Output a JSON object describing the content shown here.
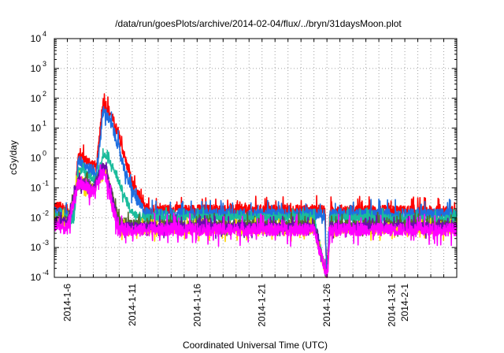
{
  "chart_data": {
    "type": "line",
    "title": "/data/run/goesPlots/archive/2014-02-04/flux/../bryn/31daysMoon.plot",
    "xlabel": "Coordinated Universal Time (UTC)",
    "ylabel": "cGy/day",
    "yscale": "log",
    "ylim": [
      0.0001,
      10000
    ],
    "xlim": [
      "2014-01-05",
      "2014-02-05"
    ],
    "grid": true,
    "y_ticks": [
      {
        "value": 0.0001,
        "base": "10",
        "exp": "-4"
      },
      {
        "value": 0.001,
        "base": "10",
        "exp": "-3"
      },
      {
        "value": 0.01,
        "base": "10",
        "exp": "-2"
      },
      {
        "value": 0.1,
        "base": "10",
        "exp": "-1"
      },
      {
        "value": 1,
        "base": "10",
        "exp": "0"
      },
      {
        "value": 10,
        "base": "10",
        "exp": "1"
      },
      {
        "value": 100,
        "base": "10",
        "exp": "2"
      },
      {
        "value": 1000,
        "base": "10",
        "exp": "3"
      },
      {
        "value": 10000,
        "base": "10",
        "exp": "4"
      }
    ],
    "x_ticks": [
      {
        "date": "2014-01-06",
        "label": "2014-1-6"
      },
      {
        "date": "2014-01-11",
        "label": "2014-1-11"
      },
      {
        "date": "2014-01-16",
        "label": "2014-1-16"
      },
      {
        "date": "2014-01-21",
        "label": "2014-1-21"
      },
      {
        "date": "2014-01-26",
        "label": "2014-1-26"
      },
      {
        "date": "2014-01-31",
        "label": "2014-1-31"
      },
      {
        "date": "2014-02-01",
        "label": "2014-2-1"
      }
    ],
    "series": [
      {
        "color": "#ff0000",
        "noise": 0.3,
        "points": [
          [
            "2014-01-05",
            0.025
          ],
          [
            "2014-01-06",
            0.018
          ],
          [
            "2014-01-06T12:00",
            0.012
          ],
          [
            "2014-01-06T20:00",
            1.3
          ],
          [
            "2014-01-07T12:00",
            0.8
          ],
          [
            "2014-01-08",
            0.6
          ],
          [
            "2014-01-08T06:00",
            0.5
          ],
          [
            "2014-01-08T18:00",
            70
          ],
          [
            "2014-01-09",
            60
          ],
          [
            "2014-01-09T12:00",
            20
          ],
          [
            "2014-01-10",
            5
          ],
          [
            "2014-01-10T12:00",
            0.8
          ],
          [
            "2014-01-11",
            0.15
          ],
          [
            "2014-01-11T12:00",
            0.05
          ],
          [
            "2014-01-12",
            0.02
          ],
          [
            "2014-01-13",
            0.018
          ],
          [
            "2014-01-25",
            0.018
          ],
          [
            "2014-01-25T20:00",
            0.02
          ],
          [
            "2014-01-26",
            0.0001
          ],
          [
            "2014-01-26T06:00",
            0.018
          ],
          [
            "2014-02-05",
            0.016
          ]
        ]
      },
      {
        "color": "#1e6fe0",
        "noise": 0.32,
        "points": [
          [
            "2014-01-05",
            0.015
          ],
          [
            "2014-01-06",
            0.012
          ],
          [
            "2014-01-06T12:00",
            0.01
          ],
          [
            "2014-01-06T20:00",
            0.9
          ],
          [
            "2014-01-07T12:00",
            0.5
          ],
          [
            "2014-01-08",
            0.35
          ],
          [
            "2014-01-08T06:00",
            0.3
          ],
          [
            "2014-01-08T18:00",
            35
          ],
          [
            "2014-01-09",
            30
          ],
          [
            "2014-01-09T12:00",
            10
          ],
          [
            "2014-01-10",
            2
          ],
          [
            "2014-01-10T12:00",
            0.3
          ],
          [
            "2014-01-11",
            0.08
          ],
          [
            "2014-01-11T12:00",
            0.03
          ],
          [
            "2014-01-12",
            0.015
          ],
          [
            "2014-01-13",
            0.013
          ],
          [
            "2014-01-25",
            0.013
          ],
          [
            "2014-01-25T20:00",
            0.012
          ],
          [
            "2014-01-26",
            0.0001
          ],
          [
            "2014-01-26T06:00",
            0.013
          ],
          [
            "2014-02-05",
            0.013
          ]
        ]
      },
      {
        "color": "#1abc9c",
        "noise": 0.22,
        "points": [
          [
            "2014-01-05",
            0.012
          ],
          [
            "2014-01-06",
            0.01
          ],
          [
            "2014-01-06T12:00",
            0.008
          ],
          [
            "2014-01-06T20:00",
            0.4
          ],
          [
            "2014-01-07T12:00",
            0.3
          ],
          [
            "2014-01-08",
            0.2
          ],
          [
            "2014-01-08T06:00",
            0.18
          ],
          [
            "2014-01-08T18:00",
            1.2
          ],
          [
            "2014-01-09",
            1.1
          ],
          [
            "2014-01-09T12:00",
            0.5
          ],
          [
            "2014-01-10",
            0.15
          ],
          [
            "2014-01-10T12:00",
            0.04
          ],
          [
            "2014-01-11",
            0.015
          ],
          [
            "2014-01-12",
            0.01
          ],
          [
            "2014-01-25",
            0.01
          ],
          [
            "2014-01-26",
            0.0001
          ],
          [
            "2014-01-26T06:00",
            0.01
          ],
          [
            "2014-02-05",
            0.009
          ]
        ]
      },
      {
        "color": "#556b2f",
        "noise": 0.25,
        "points": [
          [
            "2014-01-05",
            0.009
          ],
          [
            "2014-01-06",
            0.008
          ],
          [
            "2014-01-06T20:00",
            0.2
          ],
          [
            "2014-01-07T12:00",
            0.15
          ],
          [
            "2014-01-08",
            0.1
          ],
          [
            "2014-01-08T18:00",
            0.5
          ],
          [
            "2014-01-09",
            0.4
          ],
          [
            "2014-01-09T12:00",
            0.05
          ],
          [
            "2014-01-10",
            0.008
          ],
          [
            "2014-01-11",
            0.006
          ],
          [
            "2014-01-25",
            0.006
          ],
          [
            "2014-01-26",
            0.0001
          ],
          [
            "2014-01-26T06:00",
            0.006
          ],
          [
            "2014-02-05",
            0.006
          ]
        ]
      },
      {
        "color": "#ffd700",
        "noise": 0.25,
        "points": [
          [
            "2014-01-05",
            0.008
          ],
          [
            "2014-01-06",
            0.007
          ],
          [
            "2014-01-06T20:00",
            0.18
          ],
          [
            "2014-01-07T12:00",
            0.12
          ],
          [
            "2014-01-08",
            0.09
          ],
          [
            "2014-01-08T18:00",
            0.45
          ],
          [
            "2014-01-09",
            0.35
          ],
          [
            "2014-01-09T12:00",
            0.03
          ],
          [
            "2014-01-10",
            0.004
          ],
          [
            "2014-01-11",
            0.004
          ],
          [
            "2014-01-25",
            0.004
          ],
          [
            "2014-01-26",
            0.0001
          ],
          [
            "2014-01-26T06:00",
            0.004
          ],
          [
            "2014-02-05",
            0.004
          ]
        ]
      },
      {
        "color": "#6a0dad",
        "noise": 0.25,
        "points": [
          [
            "2014-01-05",
            0.008
          ],
          [
            "2014-01-06",
            0.007
          ],
          [
            "2014-01-06T20:00",
            0.18
          ],
          [
            "2014-01-07T12:00",
            0.13
          ],
          [
            "2014-01-08",
            0.09
          ],
          [
            "2014-01-08T18:00",
            0.55
          ],
          [
            "2014-01-09",
            0.4
          ],
          [
            "2014-01-09T12:00",
            0.04
          ],
          [
            "2014-01-10",
            0.005
          ],
          [
            "2014-01-11",
            0.005
          ],
          [
            "2014-01-25",
            0.005
          ],
          [
            "2014-01-26",
            0.0001
          ],
          [
            "2014-01-26T06:00",
            0.005
          ],
          [
            "2014-02-05",
            0.005
          ]
        ]
      },
      {
        "color": "#ff00ff",
        "noise": 0.35,
        "points": [
          [
            "2014-01-05",
            0.006
          ],
          [
            "2014-01-06",
            0.004
          ],
          [
            "2014-01-06T20:00",
            0.15
          ],
          [
            "2014-01-07T12:00",
            0.1
          ],
          [
            "2014-01-08",
            0.07
          ],
          [
            "2014-01-08T18:00",
            0.3
          ],
          [
            "2014-01-09",
            0.2
          ],
          [
            "2014-01-09T12:00",
            0.02
          ],
          [
            "2014-01-10",
            0.004
          ],
          [
            "2014-01-11",
            0.004
          ],
          [
            "2014-01-25",
            0.004
          ],
          [
            "2014-01-26",
            0.0001
          ],
          [
            "2014-01-26T06:00",
            0.004
          ],
          [
            "2014-02-05",
            0.004
          ]
        ]
      }
    ]
  }
}
